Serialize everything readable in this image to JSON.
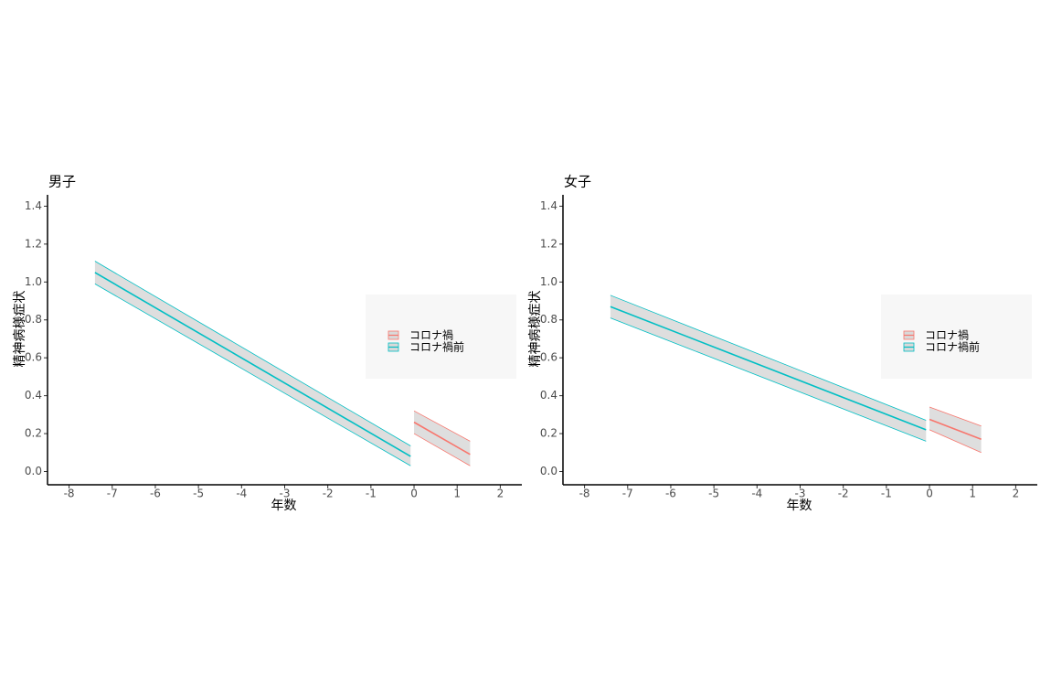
{
  "chart_data": [
    {
      "type": "line",
      "title": "男子",
      "xlabel": "年数",
      "ylabel": "精神病様症状",
      "xlim": [
        -8.5,
        2.5
      ],
      "xticks": [
        -8,
        -7,
        -6,
        -5,
        -4,
        -3,
        -2,
        -1,
        0,
        1,
        2
      ],
      "ylim": [
        -0.07,
        1.46
      ],
      "yticks": [
        {
          "value": 0,
          "label": "0.0"
        },
        0.2,
        0.4,
        0.6,
        0.8,
        {
          "value": 1,
          "label": "1.0"
        },
        1.2,
        1.4
      ],
      "grid": false,
      "legend": "right",
      "series": [
        {
          "name": "コロナ禍",
          "color": "#f8766d",
          "x": [
            0,
            1.3
          ],
          "values": [
            0.26,
            0.09
          ],
          "lower": [
            0.2,
            0.03
          ],
          "upper": [
            0.32,
            0.16
          ]
        },
        {
          "name": "コロナ禍前",
          "color": "#00bfc4",
          "x": [
            -7.4,
            -0.08
          ],
          "values": [
            1.05,
            0.08
          ],
          "lower": [
            0.99,
            0.03
          ],
          "upper": [
            1.11,
            0.135
          ]
        }
      ]
    },
    {
      "type": "line",
      "title": "女子",
      "xlabel": "年数",
      "ylabel": "精神病様症状",
      "xlim": [
        -8.5,
        2.5
      ],
      "xticks": [
        -8,
        -7,
        -6,
        -5,
        -4,
        -3,
        -2,
        -1,
        0,
        1,
        2
      ],
      "ylim": [
        -0.07,
        1.46
      ],
      "yticks": [
        {
          "value": 0,
          "label": "0.0"
        },
        0.2,
        0.4,
        0.6,
        0.8,
        {
          "value": 1,
          "label": "1.0"
        },
        1.2,
        1.4
      ],
      "grid": false,
      "legend": "right",
      "series": [
        {
          "name": "コロナ禍",
          "color": "#f8766d",
          "x": [
            0,
            1.2
          ],
          "values": [
            0.275,
            0.17
          ],
          "lower": [
            0.22,
            0.1
          ],
          "upper": [
            0.34,
            0.24
          ]
        },
        {
          "name": "コロナ禍前",
          "color": "#00bfc4",
          "x": [
            -7.4,
            -0.08
          ],
          "values": [
            0.87,
            0.22
          ],
          "lower": [
            0.81,
            0.16
          ],
          "upper": [
            0.93,
            0.27
          ]
        }
      ]
    }
  ]
}
